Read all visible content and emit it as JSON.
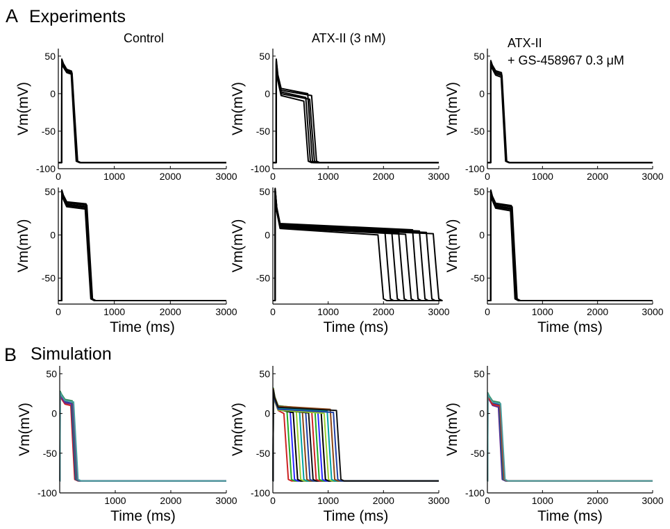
{
  "sections": {
    "a_letter": "A",
    "a_title": "Experiments",
    "b_letter": "B",
    "b_title": "Simulation"
  },
  "columns": {
    "control": "Control",
    "atx": "ATX-II (3 nM)",
    "gs_line1": "ATX-II",
    "gs_line2": "+ GS-458967 0.3 μM"
  },
  "axis_text": {
    "ylabel": "Vm(mV)",
    "xlabel": "Time (ms)"
  },
  "chart_data": [
    {
      "type": "line",
      "id": "a1-control",
      "title": "Control",
      "xlabel": "",
      "ylabel": "Vm(mV)",
      "xlim": [
        0,
        3000
      ],
      "ylim": [
        -100,
        60
      ],
      "xticks": [
        0,
        1000,
        2000,
        3000
      ],
      "yticks": [
        50,
        0,
        -50,
        -100
      ],
      "grid": false,
      "rest": -92,
      "count": 4,
      "tstart": [
        60,
        60
      ],
      "peak": [
        40,
        46
      ],
      "plateau": [
        26,
        30
      ],
      "tplat": [
        230,
        245
      ],
      "tend": [
        320,
        345
      ],
      "colors": [
        "#000000"
      ]
    },
    {
      "type": "line",
      "id": "a1-atx",
      "title": "ATX-II (3 nM)",
      "xlabel": "",
      "ylabel": "Vm(mV)",
      "xlim": [
        0,
        3000
      ],
      "ylim": [
        -100,
        60
      ],
      "xticks": [
        0,
        1000,
        2000,
        3000
      ],
      "yticks": [
        50,
        0,
        -50,
        -100
      ],
      "grid": false,
      "rest": -92,
      "count": 5,
      "tstart": [
        60,
        60
      ],
      "peak": [
        40,
        46
      ],
      "plateau": [
        -10,
        0
      ],
      "tplat": [
        560,
        700
      ],
      "tend": [
        640,
        790
      ],
      "colors": [
        "#000000"
      ]
    },
    {
      "type": "line",
      "id": "a1-gs",
      "title": "ATX-II + GS-458967 0.3 μM",
      "xlabel": "",
      "ylabel": "Vm(mV)",
      "xlim": [
        0,
        3000
      ],
      "ylim": [
        -100,
        60
      ],
      "xticks": [
        0,
        1000,
        2000,
        3000
      ],
      "yticks": [
        50,
        0,
        -50,
        -100
      ],
      "grid": false,
      "rest": -92,
      "count": 4,
      "tstart": [
        60,
        60
      ],
      "peak": [
        40,
        44
      ],
      "plateau": [
        22,
        28
      ],
      "tplat": [
        250,
        265
      ],
      "tend": [
        330,
        350
      ],
      "colors": [
        "#000000"
      ]
    },
    {
      "type": "line",
      "id": "a2-control",
      "title": "",
      "xlabel": "Time (ms)",
      "ylabel": "Vm(mV)",
      "xlim": [
        0,
        3000
      ],
      "ylim": [
        -80,
        55
      ],
      "xticks": [
        0,
        1000,
        2000,
        3000
      ],
      "yticks": [
        50,
        0,
        -50
      ],
      "grid": false,
      "rest": -76,
      "count": 5,
      "tstart": [
        60,
        60
      ],
      "peak": [
        48,
        52
      ],
      "plateau": [
        30,
        36
      ],
      "tplat": [
        480,
        510
      ],
      "tend": [
        580,
        610
      ],
      "colors": [
        "#000000"
      ]
    },
    {
      "type": "line",
      "id": "a2-atx",
      "title": "",
      "xlabel": "Time (ms)",
      "ylabel": "Vm(mV)",
      "xlim": [
        0,
        3000
      ],
      "ylim": [
        -80,
        55
      ],
      "xticks": [
        0,
        1000,
        2000,
        3000
      ],
      "yticks": [
        50,
        0,
        -50
      ],
      "grid": false,
      "rest": -76,
      "count": 9,
      "tstart": [
        40,
        40
      ],
      "peak": [
        50,
        54
      ],
      "plateau": [
        0,
        6
      ],
      "tplat": [
        1900,
        2900
      ],
      "tend": [
        2000,
        3000
      ],
      "colors": [
        "#000000"
      ]
    },
    {
      "type": "line",
      "id": "a2-gs",
      "title": "",
      "xlabel": "Time (ms)",
      "ylabel": "Vm(mV)",
      "xlim": [
        0,
        3000
      ],
      "ylim": [
        -80,
        55
      ],
      "xticks": [
        0,
        1000,
        2000,
        3000
      ],
      "yticks": [
        50,
        0,
        -50
      ],
      "grid": false,
      "rest": -76,
      "count": 5,
      "tstart": [
        60,
        60
      ],
      "peak": [
        48,
        52
      ],
      "plateau": [
        28,
        34
      ],
      "tplat": [
        420,
        450
      ],
      "tend": [
        500,
        540
      ],
      "colors": [
        "#000000"
      ]
    },
    {
      "type": "line",
      "id": "b-control",
      "title": "",
      "xlabel": "Time (ms)",
      "ylabel": "Vm(mV)",
      "xlim": [
        0,
        3000
      ],
      "ylim": [
        -100,
        60
      ],
      "xticks": [
        1000,
        2000,
        3000
      ],
      "yticks": [
        50,
        0,
        -50,
        -100
      ],
      "grid": false,
      "rest": -85,
      "count": 5,
      "tstart": [
        5,
        5
      ],
      "peak": [
        22,
        28
      ],
      "plateau": [
        10,
        16
      ],
      "tplat": [
        200,
        250
      ],
      "tend": [
        270,
        330
      ],
      "colors": [
        "#cc2222",
        "#1f3fa0",
        "#2e8b57",
        "#6a2a8a",
        "#4aa0a0"
      ]
    },
    {
      "type": "line",
      "id": "b-atx",
      "title": "",
      "xlabel": "Time (ms)",
      "ylabel": "Vm(mV)",
      "xlim": [
        0,
        3000
      ],
      "ylim": [
        -100,
        60
      ],
      "xticks": [
        0,
        1000,
        2000,
        3000
      ],
      "yticks": [
        50,
        0,
        -50,
        -100
      ],
      "grid": false,
      "rest": -85,
      "count": 18,
      "tstart": [
        5,
        5
      ],
      "peak": [
        26,
        32
      ],
      "plateau": [
        0,
        6
      ],
      "tplat": [
        200,
        1150
      ],
      "tend": [
        280,
        1230
      ],
      "colors": [
        "#cc2222",
        "#22aa22",
        "#2a2aff",
        "#000000",
        "#9acd32",
        "#00a0a0",
        "#8b4513",
        "#1f3fa0",
        "#111111"
      ]
    },
    {
      "type": "line",
      "id": "b-gs",
      "title": "",
      "xlabel": "Time (ms)",
      "ylabel": "Vm(mV)",
      "xlim": [
        0,
        3000
      ],
      "ylim": [
        -100,
        60
      ],
      "xticks": [
        0,
        1000,
        2000,
        3000
      ],
      "yticks": [
        50,
        0,
        -50,
        -100
      ],
      "grid": false,
      "rest": -85,
      "count": 5,
      "tstart": [
        5,
        5
      ],
      "peak": [
        22,
        26
      ],
      "plateau": [
        8,
        14
      ],
      "tplat": [
        200,
        240
      ],
      "tend": [
        270,
        320
      ],
      "colors": [
        "#6a2a8a",
        "#1f3fa0",
        "#2e8b57",
        "#cc2222",
        "#4aa0a0"
      ]
    }
  ]
}
